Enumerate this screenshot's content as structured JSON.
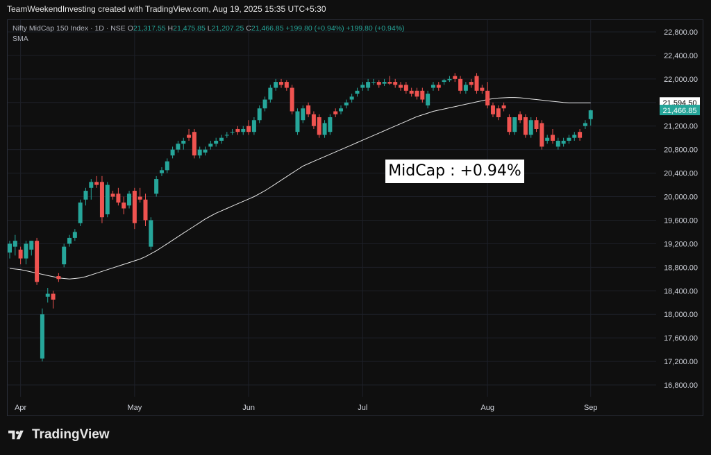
{
  "header": "TeamWeekendInvesting created with TradingView.com, Aug 19, 2025 15:35 UTC+5:30",
  "legend": {
    "symbol": "Nifty MidCap 150 Index · 1D · NSE",
    "o_label": "O",
    "o": "21,317.55",
    "h_label": "H",
    "h": "21,475.85",
    "l_label": "L",
    "l": "21,207.25",
    "c_label": "C",
    "c": "21,466.85",
    "change": "+199.80 (+0.94%)",
    "change2": "+199.80 (+0.94%)",
    "indicator": "SMA"
  },
  "annotation": "MidCap : +0.94%",
  "brand": "TradingView",
  "colors": {
    "up": "#26a69a",
    "down": "#ef5350",
    "sma": "#e6e6e6",
    "grid": "#1e2129",
    "axis_text": "#d1d4dc",
    "background": "#0f0f0f"
  },
  "chart_data": {
    "type": "candlestick",
    "ylim": [
      16600,
      23000
    ],
    "yticks": [
      "22,800.00",
      "22,400.00",
      "22,000.00",
      "21,600.00",
      "21,200.00",
      "20,800.00",
      "20,400.00",
      "20,000.00",
      "19,600.00",
      "19,200.00",
      "18,800.00",
      "18,400.00",
      "18,000.00",
      "17,600.00",
      "17,200.00",
      "16,800.00"
    ],
    "ytick_values": [
      22800,
      22400,
      22000,
      21600,
      21200,
      20800,
      20400,
      20000,
      19600,
      19200,
      18800,
      18400,
      18000,
      17600,
      17200,
      16800
    ],
    "xticks": [
      {
        "label": "Apr",
        "index": 2
      },
      {
        "label": "May",
        "index": 23
      },
      {
        "label": "Jun",
        "index": 44
      },
      {
        "label": "Jul",
        "index": 65
      },
      {
        "label": "Aug",
        "index": 88
      },
      {
        "label": "Sep",
        "index": 107
      }
    ],
    "price_labels": [
      {
        "text": "21,594.50",
        "value": 21594.5,
        "style": "sma"
      },
      {
        "text": "21,466.85",
        "value": 21466.85,
        "style": "last"
      }
    ],
    "candles": [
      {
        "o": 19050,
        "h": 19250,
        "l": 18950,
        "c": 19200
      },
      {
        "o": 19150,
        "h": 19350,
        "l": 19000,
        "c": 19250
      },
      {
        "o": 19100,
        "h": 19150,
        "l": 18850,
        "c": 18950
      },
      {
        "o": 18950,
        "h": 19250,
        "l": 18850,
        "c": 19200
      },
      {
        "o": 19100,
        "h": 19250,
        "l": 19000,
        "c": 19250
      },
      {
        "o": 19250,
        "h": 19300,
        "l": 18500,
        "c": 18550
      },
      {
        "o": 17250,
        "h": 18100,
        "l": 17200,
        "c": 18000
      },
      {
        "o": 18300,
        "h": 18450,
        "l": 18200,
        "c": 18350
      },
      {
        "o": 18350,
        "h": 18400,
        "l": 18100,
        "c": 18250
      },
      {
        "o": 18650,
        "h": 18700,
        "l": 18550,
        "c": 18600
      },
      {
        "o": 18850,
        "h": 19200,
        "l": 18800,
        "c": 19150
      },
      {
        "o": 19200,
        "h": 19350,
        "l": 19150,
        "c": 19300
      },
      {
        "o": 19300,
        "h": 19450,
        "l": 19250,
        "c": 19400
      },
      {
        "o": 19550,
        "h": 19950,
        "l": 19500,
        "c": 19900
      },
      {
        "o": 19950,
        "h": 20150,
        "l": 19850,
        "c": 20100
      },
      {
        "o": 20150,
        "h": 20300,
        "l": 19950,
        "c": 20250
      },
      {
        "o": 20250,
        "h": 20350,
        "l": 20150,
        "c": 20200
      },
      {
        "o": 20250,
        "h": 20350,
        "l": 19550,
        "c": 19650
      },
      {
        "o": 19700,
        "h": 20250,
        "l": 19650,
        "c": 20200
      },
      {
        "o": 20050,
        "h": 20100,
        "l": 19950,
        "c": 20000
      },
      {
        "o": 20050,
        "h": 20150,
        "l": 19850,
        "c": 19900
      },
      {
        "o": 19900,
        "h": 20000,
        "l": 19700,
        "c": 19800
      },
      {
        "o": 19850,
        "h": 20100,
        "l": 19800,
        "c": 20050
      },
      {
        "o": 20100,
        "h": 20150,
        "l": 19450,
        "c": 19550
      },
      {
        "o": 20000,
        "h": 20150,
        "l": 19900,
        "c": 19950
      },
      {
        "o": 19950,
        "h": 20050,
        "l": 19500,
        "c": 19600
      },
      {
        "o": 19150,
        "h": 19650,
        "l": 19100,
        "c": 19600
      },
      {
        "o": 20050,
        "h": 20350,
        "l": 20000,
        "c": 20300
      },
      {
        "o": 20400,
        "h": 20500,
        "l": 20350,
        "c": 20450
      },
      {
        "o": 20450,
        "h": 20650,
        "l": 20400,
        "c": 20600
      },
      {
        "o": 20700,
        "h": 20850,
        "l": 20650,
        "c": 20800
      },
      {
        "o": 20800,
        "h": 20950,
        "l": 20750,
        "c": 20900
      },
      {
        "o": 20900,
        "h": 21000,
        "l": 20800,
        "c": 20950
      },
      {
        "o": 21050,
        "h": 21150,
        "l": 20950,
        "c": 21000
      },
      {
        "o": 21100,
        "h": 21150,
        "l": 20650,
        "c": 20700
      },
      {
        "o": 20700,
        "h": 20850,
        "l": 20650,
        "c": 20800
      },
      {
        "o": 20750,
        "h": 20850,
        "l": 20700,
        "c": 20800
      },
      {
        "o": 20850,
        "h": 20950,
        "l": 20800,
        "c": 20900
      },
      {
        "o": 20900,
        "h": 21000,
        "l": 20850,
        "c": 20950
      },
      {
        "o": 20950,
        "h": 21050,
        "l": 20900,
        "c": 21000
      },
      {
        "o": 21050,
        "h": 21100,
        "l": 21000,
        "c": 21050
      },
      {
        "o": 21100,
        "h": 21150,
        "l": 21050,
        "c": 21100
      },
      {
        "o": 21150,
        "h": 21200,
        "l": 21050,
        "c": 21100
      },
      {
        "o": 21100,
        "h": 21200,
        "l": 21050,
        "c": 21150
      },
      {
        "o": 21200,
        "h": 21300,
        "l": 21050,
        "c": 21100
      },
      {
        "o": 21100,
        "h": 21350,
        "l": 21050,
        "c": 21300
      },
      {
        "o": 21300,
        "h": 21550,
        "l": 21250,
        "c": 21500
      },
      {
        "o": 21500,
        "h": 21700,
        "l": 21450,
        "c": 21650
      },
      {
        "o": 21650,
        "h": 21900,
        "l": 21600,
        "c": 21850
      },
      {
        "o": 21850,
        "h": 22000,
        "l": 21800,
        "c": 21950
      },
      {
        "o": 21950,
        "h": 22000,
        "l": 21850,
        "c": 21900
      },
      {
        "o": 21950,
        "h": 21980,
        "l": 21800,
        "c": 21850
      },
      {
        "o": 21850,
        "h": 21900,
        "l": 21400,
        "c": 21450
      },
      {
        "o": 21100,
        "h": 21500,
        "l": 21050,
        "c": 21450
      },
      {
        "o": 21300,
        "h": 21550,
        "l": 21250,
        "c": 21500
      },
      {
        "o": 21550,
        "h": 21600,
        "l": 21350,
        "c": 21400
      },
      {
        "o": 21400,
        "h": 21450,
        "l": 21150,
        "c": 21200
      },
      {
        "o": 21350,
        "h": 21400,
        "l": 21000,
        "c": 21050
      },
      {
        "o": 21050,
        "h": 21300,
        "l": 21000,
        "c": 21250
      },
      {
        "o": 21100,
        "h": 21400,
        "l": 21050,
        "c": 21350
      },
      {
        "o": 21450,
        "h": 21500,
        "l": 21350,
        "c": 21400
      },
      {
        "o": 21450,
        "h": 21550,
        "l": 21400,
        "c": 21500
      },
      {
        "o": 21550,
        "h": 21650,
        "l": 21500,
        "c": 21600
      },
      {
        "o": 21650,
        "h": 21750,
        "l": 21600,
        "c": 21700
      },
      {
        "o": 21750,
        "h": 21850,
        "l": 21700,
        "c": 21800
      },
      {
        "o": 21850,
        "h": 21950,
        "l": 21800,
        "c": 21900
      },
      {
        "o": 21850,
        "h": 22000,
        "l": 21800,
        "c": 21950
      },
      {
        "o": 21950,
        "h": 22000,
        "l": 21900,
        "c": 21950
      },
      {
        "o": 21950,
        "h": 21980,
        "l": 21850,
        "c": 21900
      },
      {
        "o": 21920,
        "h": 22000,
        "l": 21880,
        "c": 21950
      },
      {
        "o": 21950,
        "h": 22050,
        "l": 21900,
        "c": 21920
      },
      {
        "o": 21950,
        "h": 22000,
        "l": 21850,
        "c": 21900
      },
      {
        "o": 21900,
        "h": 21950,
        "l": 21800,
        "c": 21850
      },
      {
        "o": 21900,
        "h": 21950,
        "l": 21750,
        "c": 21800
      },
      {
        "o": 21800,
        "h": 21850,
        "l": 21700,
        "c": 21750
      },
      {
        "o": 21800,
        "h": 21850,
        "l": 21650,
        "c": 21700
      },
      {
        "o": 21800,
        "h": 21850,
        "l": 21600,
        "c": 21650
      },
      {
        "o": 21550,
        "h": 21800,
        "l": 21500,
        "c": 21750
      },
      {
        "o": 21850,
        "h": 21950,
        "l": 21800,
        "c": 21900
      },
      {
        "o": 21900,
        "h": 21950,
        "l": 21800,
        "c": 21850
      },
      {
        "o": 21950,
        "h": 22000,
        "l": 21900,
        "c": 21980
      },
      {
        "o": 21980,
        "h": 22050,
        "l": 21950,
        "c": 22000
      },
      {
        "o": 22050,
        "h": 22100,
        "l": 21950,
        "c": 22000
      },
      {
        "o": 22000,
        "h": 22050,
        "l": 21750,
        "c": 21800
      },
      {
        "o": 21800,
        "h": 21950,
        "l": 21750,
        "c": 21900
      },
      {
        "o": 21950,
        "h": 22000,
        "l": 21850,
        "c": 21900
      },
      {
        "o": 22050,
        "h": 22100,
        "l": 21750,
        "c": 21800
      },
      {
        "o": 21850,
        "h": 21900,
        "l": 21750,
        "c": 21800
      },
      {
        "o": 21800,
        "h": 21950,
        "l": 21500,
        "c": 21550
      },
      {
        "o": 21550,
        "h": 21600,
        "l": 21350,
        "c": 21400
      },
      {
        "o": 21500,
        "h": 21550,
        "l": 21300,
        "c": 21350
      },
      {
        "o": 21550,
        "h": 21600,
        "l": 21450,
        "c": 21500
      },
      {
        "o": 21350,
        "h": 21400,
        "l": 21050,
        "c": 21100
      },
      {
        "o": 21100,
        "h": 21350,
        "l": 21050,
        "c": 21350
      },
      {
        "o": 21400,
        "h": 21450,
        "l": 21250,
        "c": 21300
      },
      {
        "o": 21350,
        "h": 21400,
        "l": 21000,
        "c": 21050
      },
      {
        "o": 21050,
        "h": 21350,
        "l": 21000,
        "c": 21300
      },
      {
        "o": 21300,
        "h": 21350,
        "l": 21100,
        "c": 21150
      },
      {
        "o": 21250,
        "h": 21300,
        "l": 20800,
        "c": 20850
      },
      {
        "o": 20950,
        "h": 21050,
        "l": 20900,
        "c": 21000
      },
      {
        "o": 21050,
        "h": 21150,
        "l": 20900,
        "c": 20950
      },
      {
        "o": 20850,
        "h": 21000,
        "l": 20800,
        "c": 20950
      },
      {
        "o": 20900,
        "h": 21000,
        "l": 20850,
        "c": 20950
      },
      {
        "o": 20950,
        "h": 21050,
        "l": 20900,
        "c": 21000
      },
      {
        "o": 21000,
        "h": 21100,
        "l": 20950,
        "c": 21050
      },
      {
        "o": 21100,
        "h": 21150,
        "l": 20950,
        "c": 21000
      },
      {
        "o": 21200,
        "h": 21300,
        "l": 21150,
        "c": 21250
      },
      {
        "o": 21317.55,
        "h": 21475.85,
        "l": 21207.25,
        "c": 21466.85
      }
    ],
    "sma": [
      18780,
      18770,
      18760,
      18740,
      18720,
      18700,
      18680,
      18660,
      18640,
      18620,
      18610,
      18600,
      18610,
      18620,
      18640,
      18670,
      18700,
      18730,
      18760,
      18790,
      18820,
      18850,
      18880,
      18910,
      18940,
      18980,
      19030,
      19080,
      19140,
      19200,
      19260,
      19320,
      19380,
      19440,
      19500,
      19560,
      19620,
      19670,
      19720,
      19760,
      19800,
      19840,
      19880,
      19920,
      19960,
      20000,
      20050,
      20100,
      20160,
      20220,
      20280,
      20340,
      20400,
      20460,
      20520,
      20560,
      20600,
      20640,
      20680,
      20720,
      20760,
      20800,
      20840,
      20880,
      20920,
      20960,
      21000,
      21040,
      21080,
      21120,
      21160,
      21200,
      21240,
      21280,
      21320,
      21360,
      21390,
      21420,
      21450,
      21470,
      21490,
      21510,
      21530,
      21550,
      21570,
      21590,
      21610,
      21630,
      21650,
      21665,
      21675,
      21680,
      21685,
      21685,
      21680,
      21670,
      21660,
      21650,
      21640,
      21630,
      21620,
      21610,
      21600,
      21595,
      21594.5,
      21594.5,
      21594.5,
      21594.5
    ]
  }
}
